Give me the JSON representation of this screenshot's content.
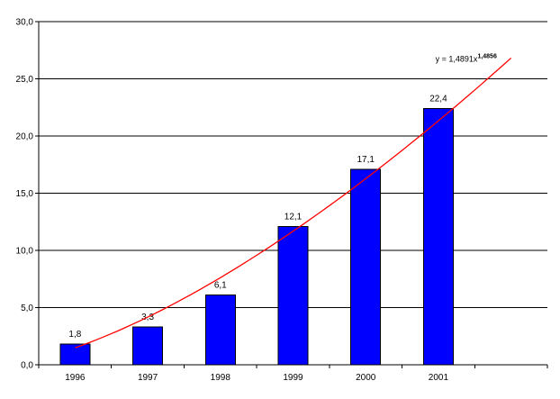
{
  "chart_data": {
    "type": "bar",
    "title": "",
    "xlabel": "",
    "ylabel": "",
    "categories": [
      "1996",
      "1997",
      "1998",
      "1999",
      "2000",
      "2001"
    ],
    "values": [
      1.8,
      3.3,
      6.1,
      12.1,
      17.1,
      22.4
    ],
    "data_labels": [
      "1,8",
      "3,3",
      "6,1",
      "12,1",
      "17,1",
      "22,4"
    ],
    "ylim": [
      0,
      30
    ],
    "y_ticks": [
      "0,0",
      "5,0",
      "10,0",
      "15,0",
      "20,0",
      "25,0",
      "30,0"
    ],
    "grid": true,
    "bar_color": "#0000ff",
    "trendline": {
      "type": "power",
      "coefficient": 1.4891,
      "exponent": 1.4856,
      "x_start": 1,
      "x_end": 7,
      "color": "#ff0000",
      "label_base": "y = 1,4891x",
      "label_exponent": "1,4856"
    }
  }
}
